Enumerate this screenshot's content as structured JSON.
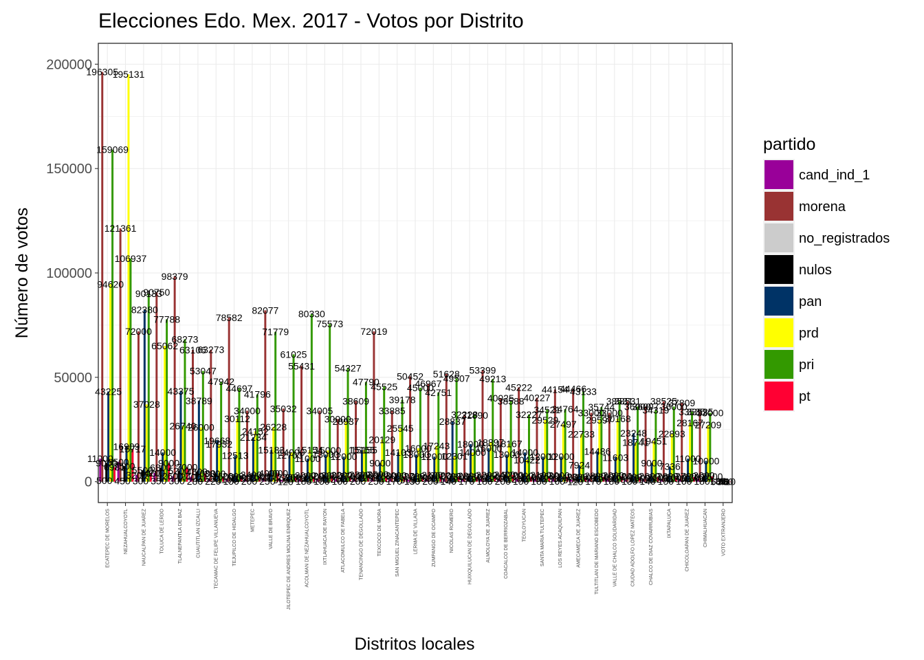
{
  "chart_data": {
    "type": "bar",
    "title": "Elecciones Edo. Mex. 2017 - Votos por Distrito",
    "xlabel": "Distritos locales",
    "ylabel": "Número de votos",
    "ylim": [
      0,
      210000
    ],
    "yticks": [
      0,
      50000,
      100000,
      150000,
      200000
    ],
    "grid": true,
    "legend_position": "right",
    "legend_title": "partido",
    "categories": [
      "ECATEPEC DE MORELOS",
      "NEZAHUALCOYOTL",
      "NAUCALPAN DE JUAREZ",
      "TOLUCA DE LERDO",
      "TLALNEPANTLA DE BAZ",
      "CUAUTITLAN IZCALLI",
      "TECAMAC DE FELIPE VILLANUEVA",
      "TEJUPILCO DE HIDALGO",
      "METEPEC",
      "VALLE DE BRAVO",
      "JILOTEPEC DE ANDRES MOLINA ENRIQUEZ",
      "ACOLMAN DE NEZAHUALCOYOTL",
      "IXTLAHUACA DE RAYON",
      "ATLACOMULCO DE FABELA",
      "TENANCINGO DE DEGOLLADO",
      "TEXCOCO DE MORA",
      "SAN MIGUEL ZINACANTEPEC",
      "LERMA DE VILLADA",
      "ZUMPANGO DE OCAMPO",
      "NICOLAS ROMERO",
      "HUIXQUILUCAN DE DEGOLLADO",
      "ALMOLOYA DE JUAREZ",
      "COACALCO DE BERRIOZABAL",
      "TEOLOYUCAN",
      "SANTA MARIA TULTEPEC",
      "LOS REYES ACAQUILPAN",
      "AMECAMECA DE JUAREZ",
      "TULTITLAN DE MARIANO ESCOBEDO",
      "VALLE DE CHALCO SOLIDARIDAD",
      "CIUDAD ADOLFO LOPEZ MATEOS",
      "CHALCO DE DIAZ COVARRUBIAS",
      "IXTAPALUCA",
      "CHICOLOAPAN DE JUAREZ",
      "CHIMALHUACAN",
      "VOTO EXTRANJERO"
    ],
    "series": [
      {
        "name": "cand_ind_1",
        "color": "#990099",
        "values": [
          11000,
          9500,
          3200,
          4200,
          2600,
          2400,
          1600,
          1100,
          1500,
          1800,
          900,
          1300,
          1100,
          1200,
          1600,
          1800,
          1300,
          900,
          1500,
          1100,
          1300,
          1400,
          1500,
          1200,
          1400,
          1300,
          900,
          1300,
          1400,
          1000,
          1100,
          1200,
          1300,
          1400,
          60
        ]
      },
      {
        "name": "morena",
        "color": "#993333",
        "values": [
          196305,
          121361,
          72000,
          90750,
          98379,
          63106,
          63273,
          78582,
          34000,
          82077,
          35032,
          55431,
          34005,
          30000,
          38609,
          72019,
          33885,
          50452,
          46967,
          51628,
          32228,
          53399,
          40025,
          45222,
          40227,
          44154,
          44466,
          33000,
          33000,
          38531,
          36007,
          38525,
          37809,
          33535,
          185
        ]
      },
      {
        "name": "no_registrados",
        "color": "#cccccc",
        "values": [
          500,
          450,
          300,
          350,
          300,
          280,
          220,
          150,
          200,
          250,
          120,
          180,
          150,
          160,
          200,
          250,
          170,
          130,
          200,
          140,
          170,
          180,
          200,
          150,
          180,
          160,
          120,
          170,
          180,
          130,
          140,
          150,
          160,
          180,
          5
        ]
      },
      {
        "name": "nulos",
        "color": "#000000",
        "values": [
          9000,
          7500,
          5500,
          6800,
          5200,
          4800,
          3800,
          2600,
          3400,
          4000,
          2200,
          3000,
          2900,
          3200,
          3300,
          3500,
          3000,
          2700,
          3100,
          2700,
          2800,
          3200,
          3400,
          2900,
          3100,
          3000,
          2300,
          2800,
          3000,
          2400,
          2600,
          2600,
          2700,
          3000,
          70
        ]
      },
      {
        "name": "pan",
        "color": "#003366",
        "values": [
          43225,
          16909,
          82380,
          14000,
          43375,
          38789,
          19668,
          12513,
          21234,
          15183,
          12703,
          11000,
          13000,
          12000,
          15155,
          9000,
          14103,
          13000,
          12000,
          28837,
          18000,
          16000,
          13000,
          14000,
          12000,
          12000,
          7924,
          14486,
          11603,
          23248,
          9000,
          7336,
          11000,
          10000,
          40
        ]
      },
      {
        "name": "prd",
        "color": "#ffff00",
        "values": [
          94620,
          195131,
          37028,
          65062,
          26740,
          26000,
          17932,
          30112,
          24152,
          26228,
          14000,
          15154,
          15000,
          28937,
          15155,
          20129,
          25545,
          16000,
          17243,
          12301,
          14000,
          18897,
          18167,
          10422,
          29529,
          27497,
          22733,
          29597,
          30168,
          18741,
          19451,
          22893,
          28167,
          27209,
          8
        ]
      },
      {
        "name": "pri",
        "color": "#339900",
        "values": [
          159069,
          106937,
          90133,
          77788,
          68273,
          53047,
          47942,
          44697,
          41796,
          71779,
          61025,
          80330,
          75573,
          54327,
          47790,
          45525,
          39178,
          45000,
          42751,
          49507,
          31890,
          49213,
          38588,
          32227,
          34521,
          34764,
          43133,
          35744,
          38531,
          36000,
          34319,
          36000,
          33535,
          33000,
          60
        ]
      },
      {
        "name": "pt",
        "color": "#ff0033",
        "values": [
          6981,
          15717,
          4000,
          9000,
          7000,
          4000,
          2500,
          2000,
          2500,
          4000,
          2000,
          2500,
          3000,
          2700,
          3000,
          2800,
          2500,
          2200,
          3000,
          2300,
          2300,
          2500,
          3200,
          2400,
          2600,
          2400,
          2000,
          2300,
          2600,
          1900,
          2100,
          2000,
          2200,
          2500,
          10
        ]
      }
    ]
  }
}
